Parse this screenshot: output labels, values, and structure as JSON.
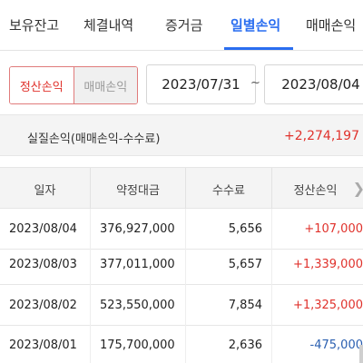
{
  "tabs": [
    {
      "label": "보유잔고",
      "active": false
    },
    {
      "label": "체결내역",
      "active": false
    },
    {
      "label": "증거금",
      "active": false
    },
    {
      "label": "일별손익",
      "active": true
    },
    {
      "label": "매매손익",
      "active": false
    }
  ],
  "filter": {
    "segments": [
      "정산손익",
      "매매손익"
    ],
    "selected": "정산손익",
    "date_from": "2023/07/31",
    "date_sep": "~",
    "date_to": "2023/08/04"
  },
  "summary": {
    "label": "실질손익(매매손익-수수료)",
    "value": "+2,274,197"
  },
  "table": {
    "headers": [
      "일자",
      "약정대금",
      "수수료",
      "정산손익"
    ],
    "rows": [
      {
        "date": "2023/08/04",
        "amount": "376,927,000",
        "fee": "5,656",
        "pnl": "+107,000",
        "sign": "pos"
      },
      {
        "date": "2023/08/03",
        "amount": "377,011,000",
        "fee": "5,657",
        "pnl": "+1,339,000",
        "sign": "pos"
      },
      {
        "date": "2023/08/02",
        "amount": "523,550,000",
        "fee": "7,854",
        "pnl": "+1,325,000",
        "sign": "pos"
      },
      {
        "date": "2023/08/01",
        "amount": "175,700,000",
        "fee": "2,636",
        "pnl": "-475,000",
        "sign": "neg"
      }
    ]
  },
  "colors": {
    "accent": "#2a6ef0",
    "profit": "#e0322c",
    "loss": "#2a5fb0"
  }
}
